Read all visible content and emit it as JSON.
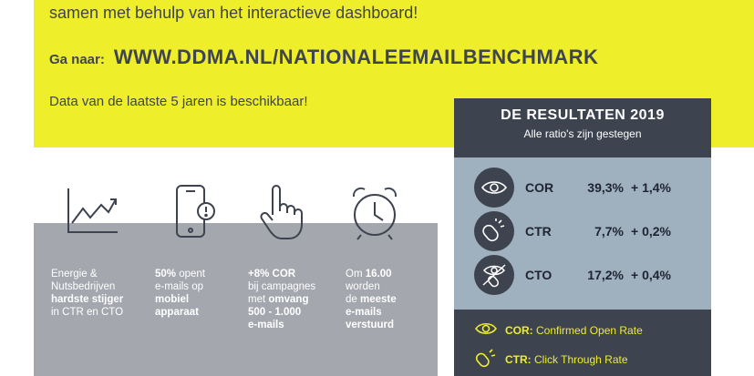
{
  "header": {
    "intro": "samen met behulp van het interactieve dashboard!",
    "goto_label": "Ga naar:",
    "url": "WWW.DDMA.NL/NATIONALEEMAILBENCHMARK",
    "availability": "Data van de laatste 5 jaren is beschikbaar!"
  },
  "stats": [
    {
      "icon": "trend-chart-icon",
      "lines": [
        [
          "Energie &",
          false
        ],
        [
          "Nutsbedrijven",
          false
        ],
        [
          "hardste stijger",
          true
        ],
        [
          "in CTR en CTO",
          false
        ]
      ]
    },
    {
      "icon": "mobile-phone-icon",
      "lines": [
        [
          "50%",
          true
        ],
        [
          " opent",
          false
        ],
        [
          "e-mails op",
          false
        ],
        [
          "mobiel",
          true
        ],
        [
          "apparaat",
          true
        ]
      ]
    },
    {
      "icon": "hand-pointer-icon",
      "lines": [
        [
          "+8% COR",
          true
        ],
        [
          "bij campagnes",
          false
        ],
        [
          "met ",
          false
        ],
        [
          "omvang",
          true
        ],
        [
          "500 - 1.000",
          true
        ],
        [
          "e-mails",
          true
        ]
      ]
    },
    {
      "icon": "alarm-clock-icon",
      "lines": [
        [
          "Om ",
          false
        ],
        [
          "16.00",
          true
        ],
        [
          "worden",
          false
        ],
        [
          "de ",
          false
        ],
        [
          "meeste",
          true
        ],
        [
          "e-mails",
          true
        ],
        [
          "verstuurd",
          true
        ]
      ]
    }
  ],
  "results": {
    "title": "DE RESULTATEN 2019",
    "subtitle": "Alle ratio's zijn gestegen",
    "rows": [
      {
        "metric": "COR",
        "value": "39,3%",
        "change": "+ 1,4%",
        "icon": "eye-icon"
      },
      {
        "metric": "CTR",
        "value": "7,7%",
        "change": "+ 0,2%",
        "icon": "mouse-click-icon"
      },
      {
        "metric": "CTO",
        "value": "17,2%",
        "change": "+ 0,4%",
        "icon": "eye-mouse-icon"
      }
    ],
    "legend": [
      {
        "abbr": "COR:",
        "text": "Confirmed Open Rate",
        "icon": "eye-icon"
      },
      {
        "abbr": "CTR:",
        "text": "Click Through Rate",
        "icon": "mouse-click-icon"
      }
    ]
  },
  "colors": {
    "yellow": "#eeee2a",
    "dark": "#3d434f",
    "panel": "#9fb0bf",
    "grey": "#a4a7ae"
  }
}
